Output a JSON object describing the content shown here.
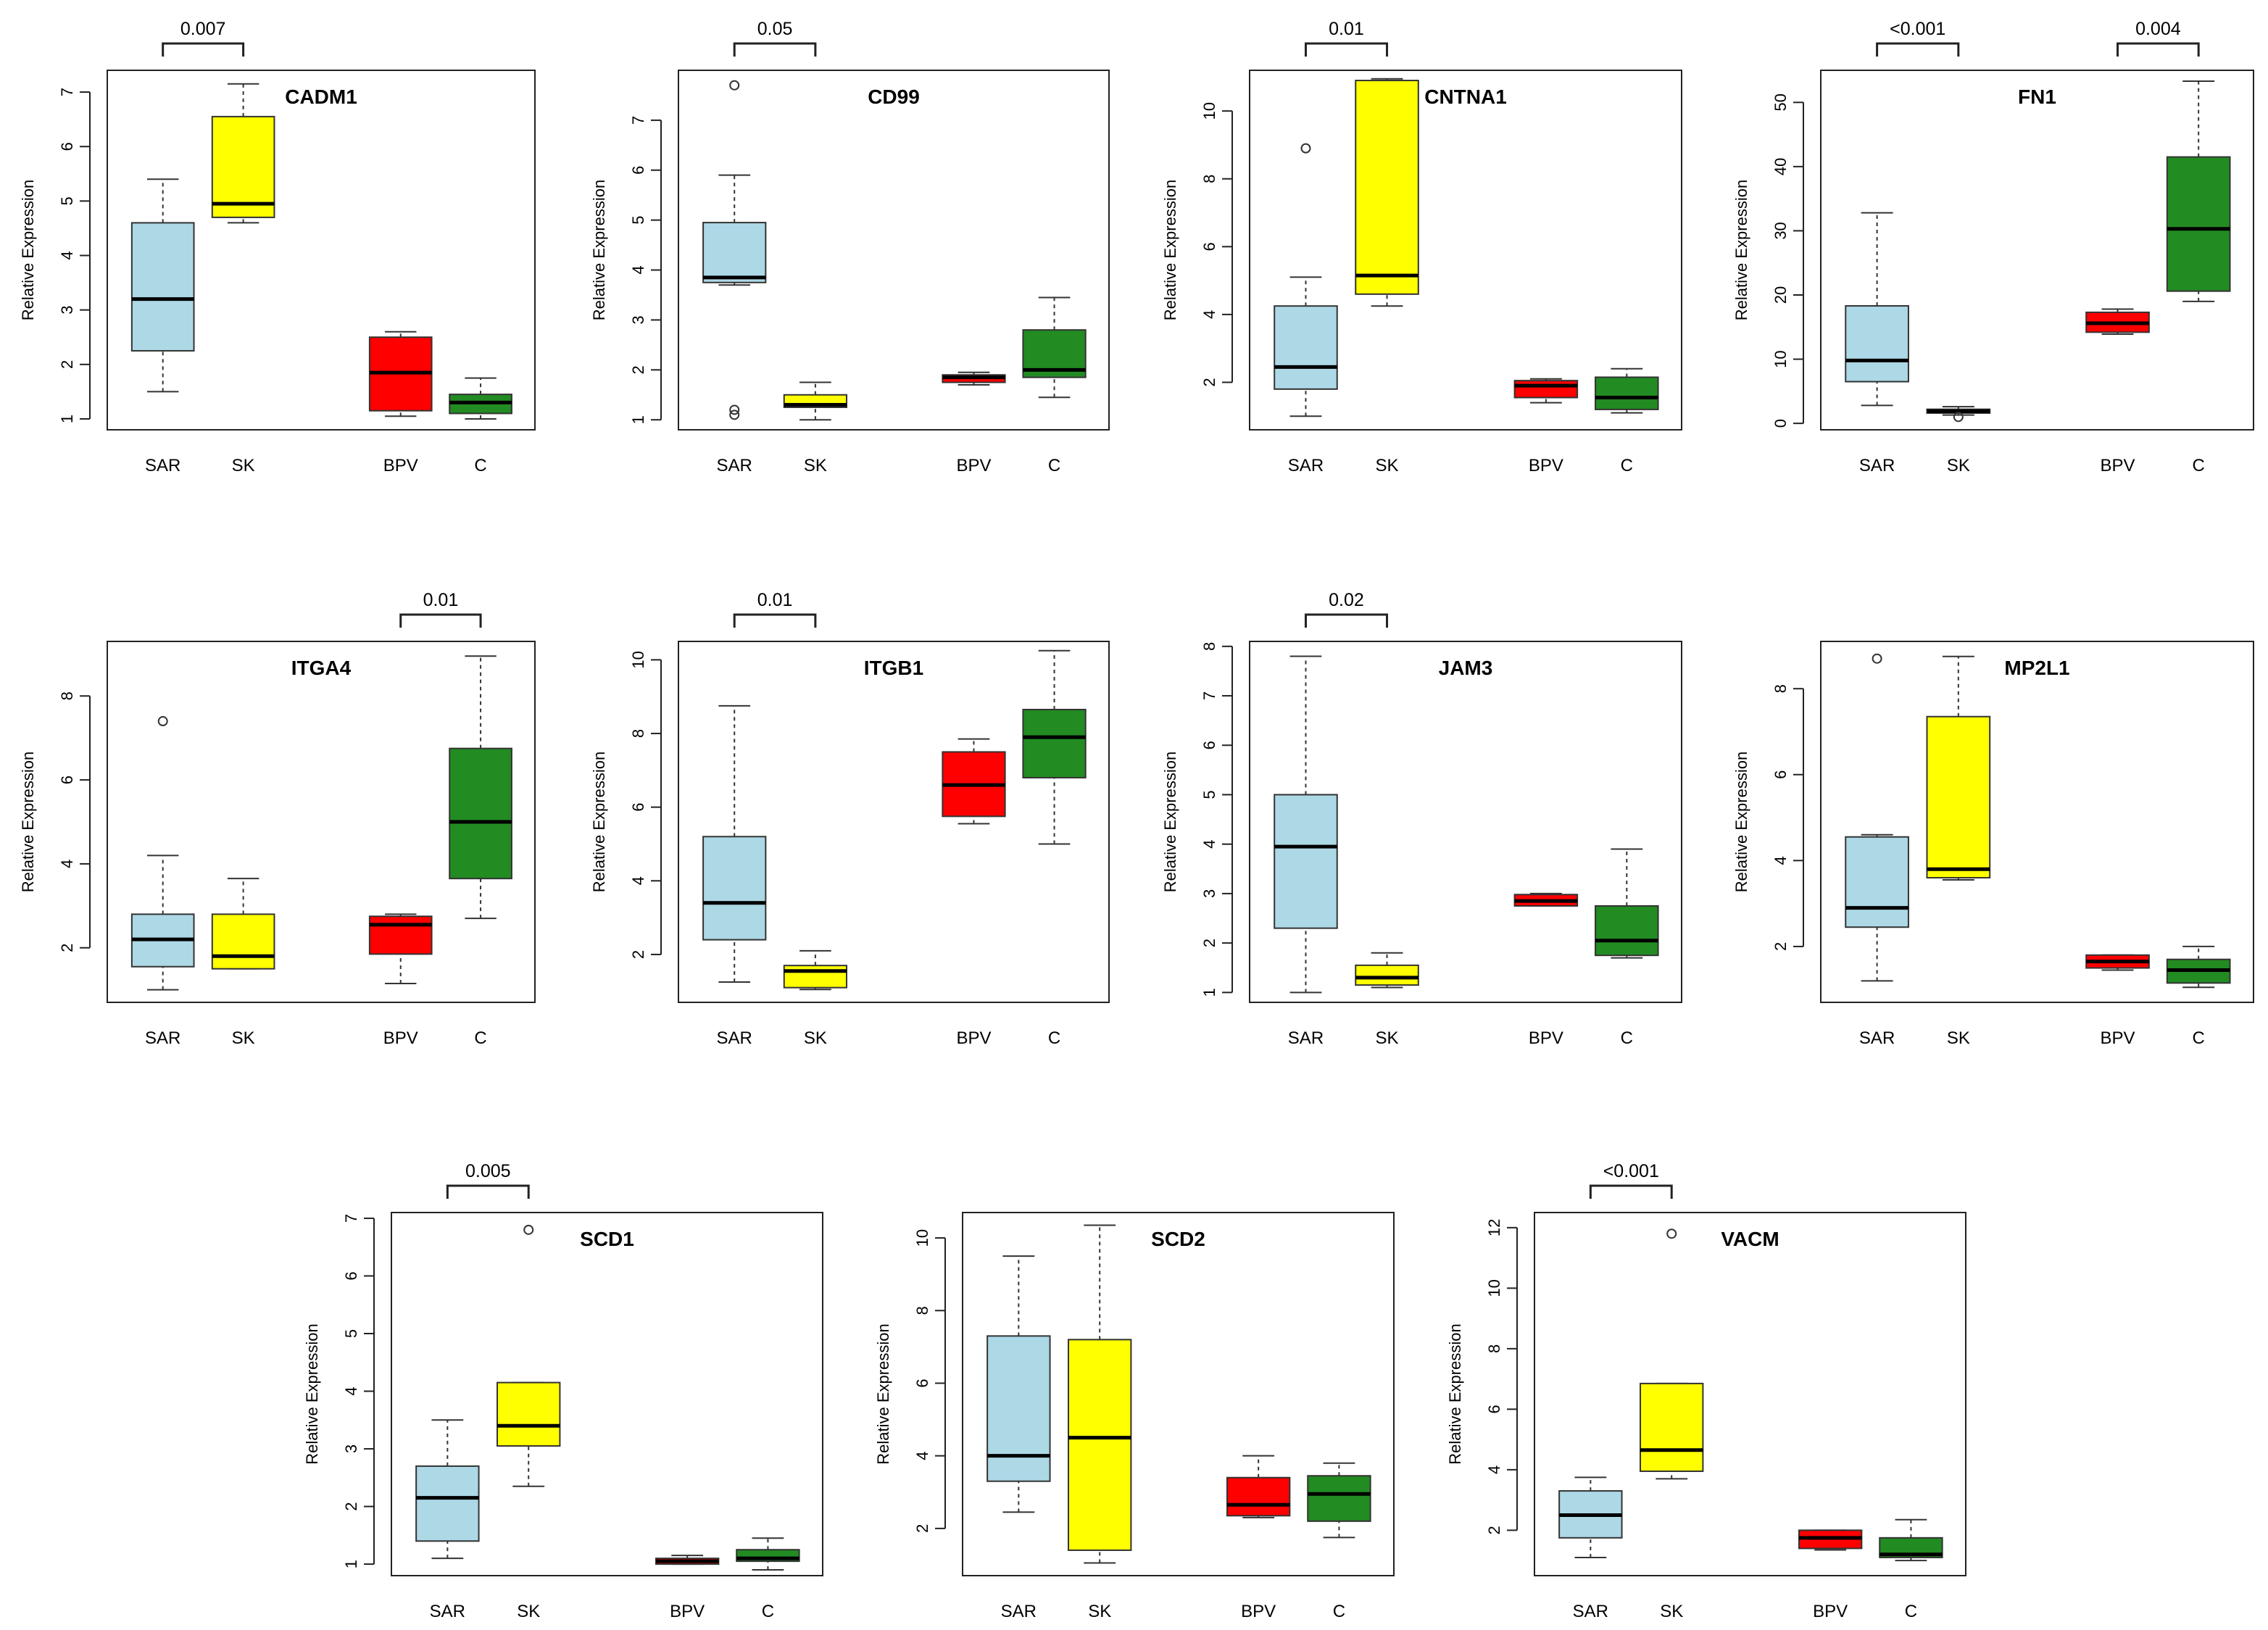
{
  "colors": {
    "SAR": "#add8e6",
    "SK": "#ffff00",
    "BPV": "#ff0000",
    "C": "#228b22"
  },
  "chart_data": [
    {
      "type": "box",
      "title": "CADM1",
      "ylabel": "Relative Expression",
      "ylim": [
        0.8,
        7.4
      ],
      "yticks": [
        1,
        2,
        3,
        4,
        5,
        6,
        7
      ],
      "categories": [
        "SAR",
        "SK",
        "BPV",
        "C"
      ],
      "boxes": [
        {
          "group": "SAR",
          "min": 1.5,
          "q1": 2.25,
          "median": 3.2,
          "q3": 4.6,
          "max": 5.4,
          "outliers": []
        },
        {
          "group": "SK",
          "min": 4.6,
          "q1": 4.7,
          "median": 4.95,
          "q3": 6.55,
          "max": 7.15,
          "outliers": []
        },
        {
          "group": "BPV",
          "min": 1.05,
          "q1": 1.15,
          "median": 1.85,
          "q3": 2.5,
          "max": 2.6,
          "outliers": []
        },
        {
          "group": "C",
          "min": 1.0,
          "q1": 1.1,
          "median": 1.3,
          "q3": 1.45,
          "max": 1.75,
          "outliers": []
        }
      ],
      "brackets": [
        {
          "from": "SAR",
          "to": "SK",
          "label": "0.007"
        }
      ]
    },
    {
      "type": "box",
      "title": "CD99",
      "ylabel": "Relative Expression",
      "ylim": [
        0.8,
        8.0
      ],
      "yticks": [
        1,
        2,
        3,
        4,
        5,
        6,
        7
      ],
      "categories": [
        "SAR",
        "SK",
        "BPV",
        "C"
      ],
      "boxes": [
        {
          "group": "SAR",
          "min": 3.7,
          "q1": 3.75,
          "median": 3.85,
          "q3": 4.95,
          "max": 5.9,
          "outliers": [
            7.7,
            1.2,
            1.1
          ]
        },
        {
          "group": "SK",
          "min": 1.0,
          "q1": 1.25,
          "median": 1.3,
          "q3": 1.5,
          "max": 1.75,
          "outliers": []
        },
        {
          "group": "BPV",
          "min": 1.7,
          "q1": 1.75,
          "median": 1.85,
          "q3": 1.9,
          "max": 1.95,
          "outliers": []
        },
        {
          "group": "C",
          "min": 1.45,
          "q1": 1.85,
          "median": 2.0,
          "q3": 2.8,
          "max": 3.45,
          "outliers": []
        }
      ],
      "brackets": [
        {
          "from": "SAR",
          "to": "SK",
          "label": "0.05"
        }
      ]
    },
    {
      "type": "box",
      "title": "CNTNA1",
      "ylabel": "Relative Expression",
      "ylim": [
        0.6,
        11.2
      ],
      "yticks": [
        2,
        4,
        6,
        8,
        10
      ],
      "categories": [
        "SAR",
        "SK",
        "BPV",
        "C"
      ],
      "boxes": [
        {
          "group": "SAR",
          "min": 1.0,
          "q1": 1.8,
          "median": 2.45,
          "q3": 4.25,
          "max": 5.1,
          "outliers": [
            8.9
          ]
        },
        {
          "group": "SK",
          "min": 4.25,
          "q1": 4.6,
          "median": 5.15,
          "q3": 10.9,
          "max": 10.95,
          "outliers": []
        },
        {
          "group": "BPV",
          "min": 1.4,
          "q1": 1.55,
          "median": 1.9,
          "q3": 2.05,
          "max": 2.1,
          "outliers": []
        },
        {
          "group": "C",
          "min": 1.1,
          "q1": 1.2,
          "median": 1.55,
          "q3": 2.15,
          "max": 2.4,
          "outliers": []
        }
      ],
      "brackets": [
        {
          "from": "SAR",
          "to": "SK",
          "label": "0.01"
        }
      ]
    },
    {
      "type": "box",
      "title": "FN1",
      "ylabel": "Relative Expression",
      "ylim": [
        -1.0,
        55.0
      ],
      "yticks": [
        0,
        10,
        20,
        30,
        40,
        50
      ],
      "categories": [
        "SAR",
        "SK",
        "BPV",
        "C"
      ],
      "boxes": [
        {
          "group": "SAR",
          "min": 2.8,
          "q1": 6.5,
          "median": 9.8,
          "q3": 18.3,
          "max": 32.8,
          "outliers": []
        },
        {
          "group": "SK",
          "min": 1.3,
          "q1": 1.6,
          "median": 1.9,
          "q3": 2.2,
          "max": 2.6,
          "outliers": [
            1.0
          ]
        },
        {
          "group": "BPV",
          "min": 13.9,
          "q1": 14.2,
          "median": 15.6,
          "q3": 17.3,
          "max": 17.8,
          "outliers": []
        },
        {
          "group": "C",
          "min": 19.0,
          "q1": 20.6,
          "median": 30.3,
          "q3": 41.5,
          "max": 53.3,
          "outliers": []
        }
      ],
      "brackets": [
        {
          "from": "SAR",
          "to": "SK",
          "label": "<0.001"
        },
        {
          "from": "BPV",
          "to": "C",
          "label": "0.004"
        }
      ]
    },
    {
      "type": "box",
      "title": "ITGA4",
      "ylabel": "Relative Expression",
      "ylim": [
        0.7,
        9.3
      ],
      "yticks": [
        2,
        4,
        6,
        8
      ],
      "categories": [
        "SAR",
        "SK",
        "BPV",
        "C"
      ],
      "boxes": [
        {
          "group": "SAR",
          "min": 1.0,
          "q1": 1.55,
          "median": 2.2,
          "q3": 2.8,
          "max": 4.2,
          "outliers": [
            7.4
          ]
        },
        {
          "group": "SK",
          "min": 1.5,
          "q1": 1.5,
          "median": 1.8,
          "q3": 2.8,
          "max": 3.65,
          "outliers": []
        },
        {
          "group": "BPV",
          "min": 1.15,
          "q1": 1.85,
          "median": 2.55,
          "q3": 2.75,
          "max": 2.8,
          "outliers": []
        },
        {
          "group": "C",
          "min": 2.7,
          "q1": 3.65,
          "median": 5.0,
          "q3": 6.75,
          "max": 8.95,
          "outliers": []
        }
      ],
      "brackets": [
        {
          "from": "BPV",
          "to": "C",
          "label": "0.01"
        }
      ]
    },
    {
      "type": "box",
      "title": "ITGB1",
      "ylabel": "Relative Expression",
      "ylim": [
        0.7,
        10.5
      ],
      "yticks": [
        2,
        4,
        6,
        8,
        10
      ],
      "categories": [
        "SAR",
        "SK",
        "BPV",
        "C"
      ],
      "boxes": [
        {
          "group": "SAR",
          "min": 1.25,
          "q1": 2.4,
          "median": 3.4,
          "q3": 5.2,
          "max": 8.75,
          "outliers": []
        },
        {
          "group": "SK",
          "min": 1.05,
          "q1": 1.1,
          "median": 1.55,
          "q3": 1.7,
          "max": 2.1,
          "outliers": []
        },
        {
          "group": "BPV",
          "min": 5.55,
          "q1": 5.75,
          "median": 6.6,
          "q3": 7.5,
          "max": 7.85,
          "outliers": []
        },
        {
          "group": "C",
          "min": 5.0,
          "q1": 6.8,
          "median": 7.9,
          "q3": 8.65,
          "max": 10.25,
          "outliers": []
        }
      ],
      "brackets": [
        {
          "from": "SAR",
          "to": "SK",
          "label": "0.01"
        }
      ]
    },
    {
      "type": "box",
      "title": "JAM3",
      "ylabel": "Relative Expression",
      "ylim": [
        0.8,
        8.1
      ],
      "yticks": [
        1,
        2,
        3,
        4,
        5,
        6,
        7,
        8
      ],
      "categories": [
        "SAR",
        "SK",
        "BPV",
        "C"
      ],
      "boxes": [
        {
          "group": "SAR",
          "min": 1.0,
          "q1": 2.3,
          "median": 3.95,
          "q3": 5.0,
          "max": 7.8,
          "outliers": []
        },
        {
          "group": "SK",
          "min": 1.1,
          "q1": 1.15,
          "median": 1.3,
          "q3": 1.55,
          "max": 1.8,
          "outliers": []
        },
        {
          "group": "BPV",
          "min": 2.75,
          "q1": 2.75,
          "median": 2.85,
          "q3": 2.98,
          "max": 3.0,
          "outliers": []
        },
        {
          "group": "C",
          "min": 1.7,
          "q1": 1.75,
          "median": 2.05,
          "q3": 2.75,
          "max": 3.9,
          "outliers": []
        }
      ],
      "brackets": [
        {
          "from": "SAR",
          "to": "SK",
          "label": "0.02"
        }
      ]
    },
    {
      "type": "box",
      "title": "MP2L1",
      "ylabel": "Relative Expression",
      "ylim": [
        0.7,
        9.1
      ],
      "yticks": [
        2,
        4,
        6,
        8
      ],
      "categories": [
        "SAR",
        "SK",
        "BPV",
        "C"
      ],
      "boxes": [
        {
          "group": "SAR",
          "min": 1.2,
          "q1": 2.45,
          "median": 2.9,
          "q3": 4.55,
          "max": 4.6,
          "outliers": [
            8.7
          ]
        },
        {
          "group": "SK",
          "min": 3.55,
          "q1": 3.6,
          "median": 3.8,
          "q3": 7.35,
          "max": 8.75,
          "outliers": []
        },
        {
          "group": "BPV",
          "min": 1.45,
          "q1": 1.5,
          "median": 1.65,
          "q3": 1.8,
          "max": 1.8,
          "outliers": []
        },
        {
          "group": "C",
          "min": 1.05,
          "q1": 1.15,
          "median": 1.45,
          "q3": 1.7,
          "max": 2.0,
          "outliers": []
        }
      ],
      "brackets": []
    },
    {
      "type": "box",
      "title": "SCD1",
      "ylabel": "Relative Expression",
      "ylim": [
        0.8,
        7.1
      ],
      "yticks": [
        1,
        2,
        3,
        4,
        5,
        6,
        7
      ],
      "categories": [
        "SAR",
        "SK",
        "BPV",
        "C"
      ],
      "boxes": [
        {
          "group": "SAR",
          "min": 1.1,
          "q1": 1.4,
          "median": 2.15,
          "q3": 2.7,
          "max": 3.5,
          "outliers": []
        },
        {
          "group": "SK",
          "min": 2.35,
          "q1": 3.05,
          "median": 3.4,
          "q3": 4.15,
          "max": 4.15,
          "outliers": [
            6.8
          ]
        },
        {
          "group": "BPV",
          "min": 1.0,
          "q1": 1.0,
          "median": 1.05,
          "q3": 1.1,
          "max": 1.15,
          "outliers": []
        },
        {
          "group": "C",
          "min": 0.9,
          "q1": 1.05,
          "median": 1.1,
          "q3": 1.25,
          "max": 1.45,
          "outliers": []
        }
      ],
      "brackets": [
        {
          "from": "SAR",
          "to": "SK",
          "label": "0.005"
        }
      ]
    },
    {
      "type": "box",
      "title": "SCD2",
      "ylabel": "Relative Expression",
      "ylim": [
        0.7,
        10.7
      ],
      "yticks": [
        2,
        4,
        6,
        8,
        10
      ],
      "categories": [
        "SAR",
        "SK",
        "BPV",
        "C"
      ],
      "boxes": [
        {
          "group": "SAR",
          "min": 2.45,
          "q1": 3.3,
          "median": 4.0,
          "q3": 7.3,
          "max": 9.5,
          "outliers": []
        },
        {
          "group": "SK",
          "min": 1.05,
          "q1": 1.4,
          "median": 4.5,
          "q3": 7.2,
          "max": 10.35,
          "outliers": []
        },
        {
          "group": "BPV",
          "min": 2.3,
          "q1": 2.35,
          "median": 2.65,
          "q3": 3.4,
          "max": 4.0,
          "outliers": []
        },
        {
          "group": "C",
          "min": 1.75,
          "q1": 2.2,
          "median": 2.95,
          "q3": 3.45,
          "max": 3.8,
          "outliers": []
        }
      ],
      "brackets": []
    },
    {
      "type": "box",
      "title": "VACM",
      "ylabel": "Relative Expression",
      "ylim": [
        0.5,
        12.5
      ],
      "yticks": [
        2,
        4,
        6,
        8,
        10,
        12
      ],
      "categories": [
        "SAR",
        "SK",
        "BPV",
        "C"
      ],
      "boxes": [
        {
          "group": "SAR",
          "min": 1.1,
          "q1": 1.75,
          "median": 2.5,
          "q3": 3.3,
          "max": 3.75,
          "outliers": []
        },
        {
          "group": "SK",
          "min": 3.7,
          "q1": 3.95,
          "median": 4.65,
          "q3": 6.85,
          "max": 6.85,
          "outliers": [
            11.8
          ]
        },
        {
          "group": "BPV",
          "min": 1.35,
          "q1": 1.4,
          "median": 1.75,
          "q3": 2.0,
          "max": 2.0,
          "outliers": []
        },
        {
          "group": "C",
          "min": 1.0,
          "q1": 1.1,
          "median": 1.2,
          "q3": 1.75,
          "max": 2.35,
          "outliers": []
        }
      ],
      "brackets": [
        {
          "from": "SAR",
          "to": "SK",
          "label": "<0.001"
        }
      ]
    }
  ]
}
